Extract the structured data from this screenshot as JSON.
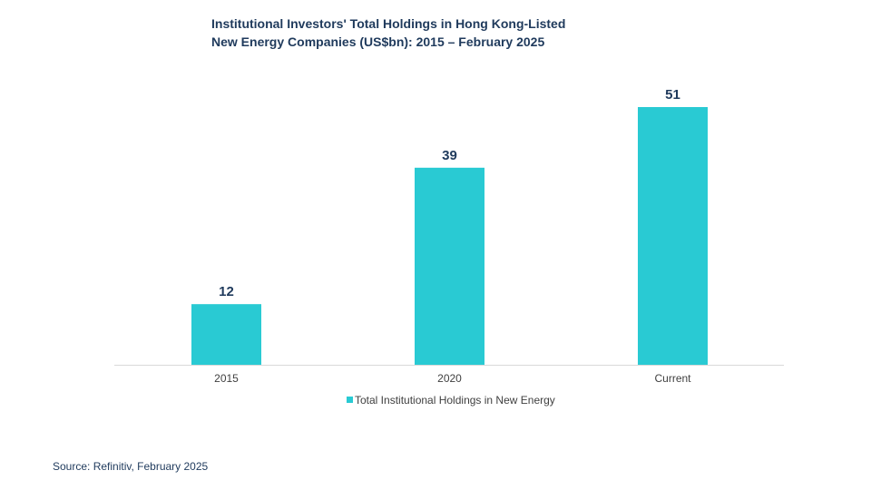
{
  "chart_data": {
    "type": "bar",
    "title_lines": [
      "Institutional Investors' Total Holdings in Hong Kong-Listed",
      "New Energy Companies (US$bn): 2015 – February 2025"
    ],
    "categories": [
      "2015",
      "2020",
      "Current"
    ],
    "series": [
      {
        "name": "Total Institutional Holdings in New Energy",
        "values": [
          12,
          39,
          51
        ],
        "color": "#29cad3"
      }
    ],
    "ylim": [
      0,
      60
    ],
    "grid": false,
    "legend_position": "bottom",
    "data_labels": true,
    "source": "Source: Refinitiv, February 2025"
  },
  "colors": {
    "title": "#1f3a5c",
    "bar": "#29cad3",
    "axis": "#d9d9d9",
    "tick_text": "#404040",
    "data_label": "#1f3a5c"
  }
}
